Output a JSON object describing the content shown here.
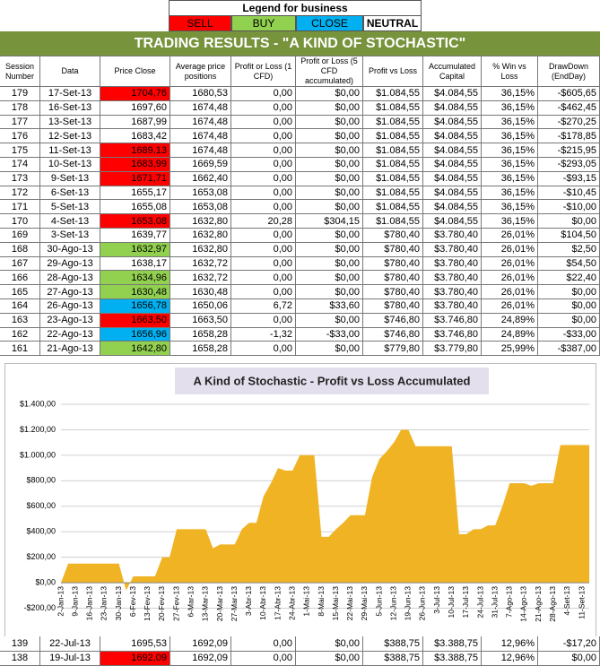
{
  "legend": {
    "title": "Legend for business",
    "items": [
      {
        "label": "SELL",
        "color": "#ff0000"
      },
      {
        "label": "BUY",
        "color": "#92d050"
      },
      {
        "label": "CLOSE",
        "color": "#00b0f0"
      },
      {
        "label": "NEUTRAL",
        "color": "#ffffff"
      }
    ]
  },
  "title": "TRADING RESULTS - \"A KIND OF STOCHASTIC\"",
  "table": {
    "header": [
      "Session Number",
      "Data",
      "Price Close",
      "Average price positions",
      "Profit or Loss (1 CFD)",
      "Profit or Loss (5 CFD accumulated)",
      "Profit vs Loss",
      "Accumulated Capital",
      "% Win vs Loss",
      "DrawDown (EndDay)"
    ],
    "rows": [
      {
        "cells": [
          "179",
          "17-Set-13",
          "1704,76",
          "1680,53",
          "0,00",
          "$0,00",
          "$1.084,55",
          "$4.084,55",
          "36,15%",
          "-$605,65"
        ],
        "fill": "#ff0000"
      },
      {
        "cells": [
          "178",
          "16-Set-13",
          "1697,60",
          "1674,48",
          "0,00",
          "$0,00",
          "$1.084,55",
          "$4.084,55",
          "36,15%",
          "-$462,45"
        ]
      },
      {
        "cells": [
          "177",
          "13-Set-13",
          "1687,99",
          "1674,48",
          "0,00",
          "$0,00",
          "$1.084,55",
          "$4.084,55",
          "36,15%",
          "-$270,25"
        ]
      },
      {
        "cells": [
          "176",
          "12-Set-13",
          "1683,42",
          "1674,48",
          "0,00",
          "$0,00",
          "$1.084,55",
          "$4.084,55",
          "36,15%",
          "-$178,85"
        ]
      },
      {
        "cells": [
          "175",
          "11-Set-13",
          "1689,13",
          "1674,48",
          "0,00",
          "$0,00",
          "$1.084,55",
          "$4.084,55",
          "36,15%",
          "-$215,95"
        ],
        "fill": "#ff0000"
      },
      {
        "cells": [
          "174",
          "10-Set-13",
          "1683,99",
          "1669,59",
          "0,00",
          "$0,00",
          "$1.084,55",
          "$4.084,55",
          "36,15%",
          "-$293,05"
        ],
        "fill": "#ff0000"
      },
      {
        "cells": [
          "173",
          "9-Set-13",
          "1671,71",
          "1662,40",
          "0,00",
          "$0,00",
          "$1.084,55",
          "$4.084,55",
          "36,15%",
          "-$93,15"
        ],
        "fill": "#ff0000"
      },
      {
        "cells": [
          "172",
          "6-Set-13",
          "1655,17",
          "1653,08",
          "0,00",
          "$0,00",
          "$1.084,55",
          "$4.084,55",
          "36,15%",
          "-$10,45"
        ]
      },
      {
        "cells": [
          "171",
          "5-Set-13",
          "1655,08",
          "1653,08",
          "0,00",
          "$0,00",
          "$1.084,55",
          "$4.084,55",
          "36,15%",
          "-$10,00"
        ]
      },
      {
        "cells": [
          "170",
          "4-Set-13",
          "1653,08",
          "1632,80",
          "20,28",
          "$304,15",
          "$1.084,55",
          "$4.084,55",
          "36,15%",
          "$0,00"
        ],
        "fill": "#ff0000"
      },
      {
        "cells": [
          "169",
          "3-Set-13",
          "1639,77",
          "1632,80",
          "0,00",
          "$0,00",
          "$780,40",
          "$3.780,40",
          "26,01%",
          "$104,50"
        ]
      },
      {
        "cells": [
          "168",
          "30-Ago-13",
          "1632,97",
          "1632,80",
          "0,00",
          "$0,00",
          "$780,40",
          "$3.780,40",
          "26,01%",
          "$2,50"
        ],
        "fill": "#92d050"
      },
      {
        "cells": [
          "167",
          "29-Ago-13",
          "1638,17",
          "1632,72",
          "0,00",
          "$0,00",
          "$780,40",
          "$3.780,40",
          "26,01%",
          "$54,50"
        ]
      },
      {
        "cells": [
          "166",
          "28-Ago-13",
          "1634,96",
          "1632,72",
          "0,00",
          "$0,00",
          "$780,40",
          "$3.780,40",
          "26,01%",
          "$22,40"
        ],
        "fill": "#92d050"
      },
      {
        "cells": [
          "165",
          "27-Ago-13",
          "1630,48",
          "1630,48",
          "0,00",
          "$0,00",
          "$780,40",
          "$3.780,40",
          "26,01%",
          "$0,00"
        ],
        "fill": "#92d050"
      },
      {
        "cells": [
          "164",
          "26-Ago-13",
          "1656,78",
          "1650,06",
          "6,72",
          "$33,60",
          "$780,40",
          "$3.780,40",
          "26,01%",
          "$0,00"
        ],
        "fill": "#00b0f0"
      },
      {
        "cells": [
          "163",
          "23-Ago-13",
          "1663,50",
          "1663,50",
          "0,00",
          "$0,00",
          "$746,80",
          "$3.746,80",
          "24,89%",
          "$0,00"
        ],
        "fill": "#ff0000"
      },
      {
        "cells": [
          "162",
          "22-Ago-13",
          "1656,96",
          "1658,28",
          "-1,32",
          "-$33,00",
          "$746,80",
          "$3.746,80",
          "24,89%",
          "-$33,00"
        ],
        "fill": "#00b0f0"
      },
      {
        "cells": [
          "161",
          "21-Ago-13",
          "1642,80",
          "1658,28",
          "0,00",
          "$0,00",
          "$779,80",
          "$3.779,80",
          "25,99%",
          "-$387,00"
        ],
        "fill": "#92d050"
      },
      {
        "cells": [
          "139",
          "22-Jul-13",
          "1695,53",
          "1692,09",
          "0,00",
          "$0,00",
          "$388,75",
          "$3.388,75",
          "12,96%",
          "-$17,20"
        ]
      },
      {
        "cells": [
          "138",
          "19-Jul-13",
          "1692,09",
          "1692,09",
          "0,00",
          "$0,00",
          "$388,75",
          "$3.388,75",
          "12,96%",
          "$0,00"
        ],
        "fill": "#ff0000"
      }
    ]
  },
  "chart_data": {
    "type": "area",
    "title": "A Kind of Stochastic - Profit vs Loss Accumulated",
    "categories": [
      "2-Jan-13",
      null,
      "9-Jan-13",
      null,
      "16-Jan-13",
      null,
      "23-Jan-13",
      null,
      "30-Jan-13",
      null,
      "6-Fev-13",
      null,
      "13-Fev-13",
      null,
      "20-Fev-13",
      null,
      "27-Fev-13",
      null,
      "6-Mar-13",
      null,
      "13-Mar-13",
      null,
      "20-Mar-13",
      null,
      "27-Mar-13",
      null,
      "3-Abr-13",
      null,
      "10-Abr-13",
      null,
      "17-Abr-13",
      null,
      "24-Abr-13",
      null,
      "1-Mai-13",
      null,
      "8-Mai-13",
      null,
      "15-Mai-13",
      null,
      "22-Mai-13",
      null,
      "29-Mai-13",
      null,
      "5-Jun-13",
      null,
      "12-Jun-13",
      null,
      "19-Jun-13",
      null,
      "26-Jun-13",
      null,
      "3-Jul-13",
      null,
      "10-Jul-13",
      null,
      "17-Jul-13",
      null,
      "24-Jul-13",
      null,
      "31-Jul-13",
      null,
      "7-Ago-13",
      null,
      "14-Ago-13",
      null,
      "21-Ago-13",
      null,
      "28-Ago-13",
      null,
      "4-Set-13",
      null,
      "11-Set-13",
      null
    ],
    "values": [
      0,
      150,
      150,
      150,
      150,
      150,
      150,
      150,
      150,
      -60,
      50,
      50,
      50,
      50,
      200,
      200,
      420,
      420,
      420,
      420,
      420,
      270,
      300,
      300,
      300,
      420,
      470,
      470,
      680,
      780,
      900,
      880,
      880,
      1000,
      1000,
      1000,
      360,
      360,
      420,
      470,
      530,
      530,
      530,
      830,
      970,
      1030,
      1100,
      1200,
      1200,
      1070,
      1070,
      1070,
      1070,
      1070,
      1070,
      380,
      380,
      420,
      420,
      450,
      450,
      600,
      780,
      780,
      780,
      760,
      780,
      780,
      780,
      1080,
      1080,
      1080,
      1080,
      1080
    ],
    "color": "#f0b323",
    "ylim": [
      -200,
      1400
    ],
    "yticks": [
      {
        "value": -200,
        "label": "-$200,00"
      },
      {
        "value": 0,
        "label": "$0,00"
      },
      {
        "value": 200,
        "label": "$200,00"
      },
      {
        "value": 400,
        "label": "$400,00"
      },
      {
        "value": 600,
        "label": "$600,00"
      },
      {
        "value": 800,
        "label": "$800,00"
      },
      {
        "value": 1000,
        "label": "$1.000,00"
      },
      {
        "value": 1200,
        "label": "$1.200,00"
      },
      {
        "value": 1400,
        "label": "$1.400,00"
      }
    ],
    "grid": true
  }
}
